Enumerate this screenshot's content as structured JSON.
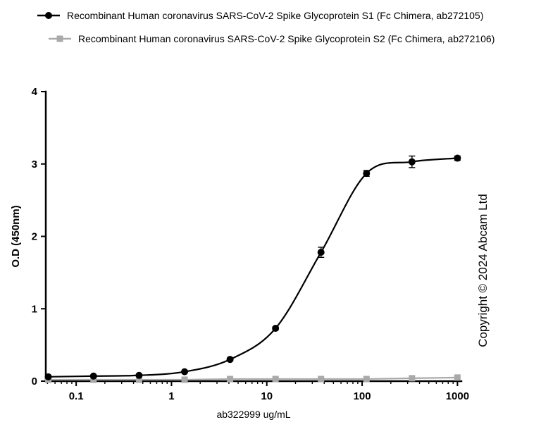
{
  "legend": [
    {
      "label": "Recombinant Human coronavirus SARS-CoV-2 Spike Glycoprotein S1 (Fc Chimera, ab272105)",
      "marker": "circle",
      "color": "#000000"
    },
    {
      "label": "Recombinant Human coronavirus SARS-CoV-2 Spike Glycoprotein S2 (Fc Chimera, ab272106)",
      "marker": "square",
      "color": "#a9a9a9"
    }
  ],
  "copyright": "Copyright © 2024 Abcam Ltd",
  "chart_data": {
    "type": "line",
    "x_scale": "log",
    "title": "",
    "xlabel": "ab322999 ug/mL",
    "ylabel": "O.D (450nm)",
    "xlim": [
      0.048,
      1100
    ],
    "ylim": [
      0,
      4
    ],
    "x_ticks": [
      0.1,
      1,
      10,
      100,
      1000
    ],
    "x_tick_labels": [
      "0.1",
      "1",
      "10",
      "100",
      "1000"
    ],
    "y_ticks": [
      0,
      1,
      2,
      3,
      4
    ],
    "y_tick_labels": [
      "0",
      "1",
      "2",
      "3",
      "4"
    ],
    "grid": false,
    "legend_position": "top-left",
    "series": [
      {
        "name": "Recombinant Human coronavirus SARS-CoV-2 Spike Glycoprotein S1 (Fc Chimera, ab272105)",
        "marker": "circle",
        "color": "#000000",
        "smooth": true,
        "x": [
          0.051,
          0.152,
          0.457,
          1.372,
          4.115,
          12.346,
          37.037,
          111.11,
          333.33,
          1000
        ],
        "y": [
          0.06,
          0.07,
          0.08,
          0.13,
          0.3,
          0.73,
          1.78,
          2.87,
          3.03,
          3.08
        ],
        "error": [
          0.01,
          0.01,
          0.01,
          0.01,
          0.02,
          0.02,
          0.07,
          0.04,
          0.08,
          0.03
        ]
      },
      {
        "name": "Recombinant Human coronavirus SARS-CoV-2 Spike Glycoprotein S2 (Fc Chimera, ab272106)",
        "marker": "square",
        "color": "#a9a9a9",
        "smooth": false,
        "x": [
          0.051,
          0.152,
          0.457,
          1.372,
          4.115,
          12.346,
          37.037,
          111.11,
          333.33,
          1000
        ],
        "y": [
          0.02,
          0.02,
          0.02,
          0.02,
          0.03,
          0.03,
          0.03,
          0.03,
          0.04,
          0.05
        ],
        "error": [
          0,
          0,
          0,
          0,
          0,
          0,
          0,
          0,
          0,
          0
        ]
      }
    ]
  }
}
